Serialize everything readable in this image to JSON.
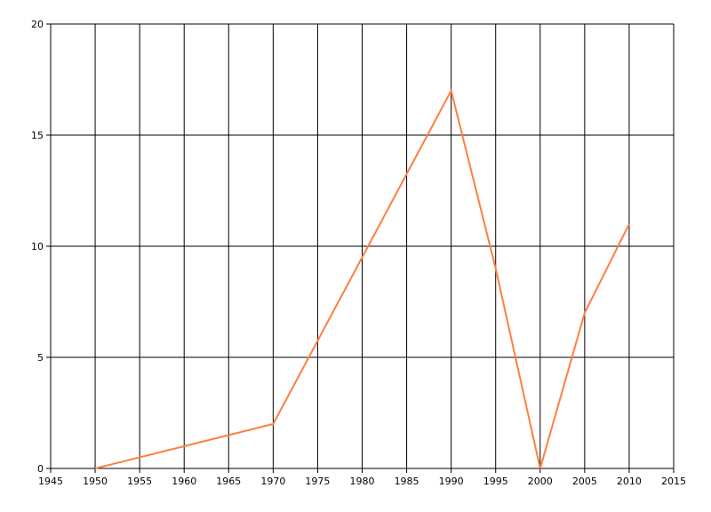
{
  "chart_data": {
    "type": "line",
    "x": [
      1950,
      1970,
      1990,
      1995,
      2000,
      2005,
      2010
    ],
    "series": [
      {
        "color": "#ff7f3f",
        "values": [
          0,
          2,
          17,
          9,
          0,
          7,
          11
        ]
      }
    ],
    "xlim": [
      1945,
      2015
    ],
    "xticks": [
      1945,
      1950,
      1955,
      1960,
      1965,
      1970,
      1975,
      1980,
      1985,
      1990,
      1995,
      2000,
      2005,
      2010,
      2015
    ],
    "ylim": [
      0,
      20
    ],
    "yticks": [
      0,
      5,
      10,
      15,
      20
    ],
    "grid": true
  }
}
